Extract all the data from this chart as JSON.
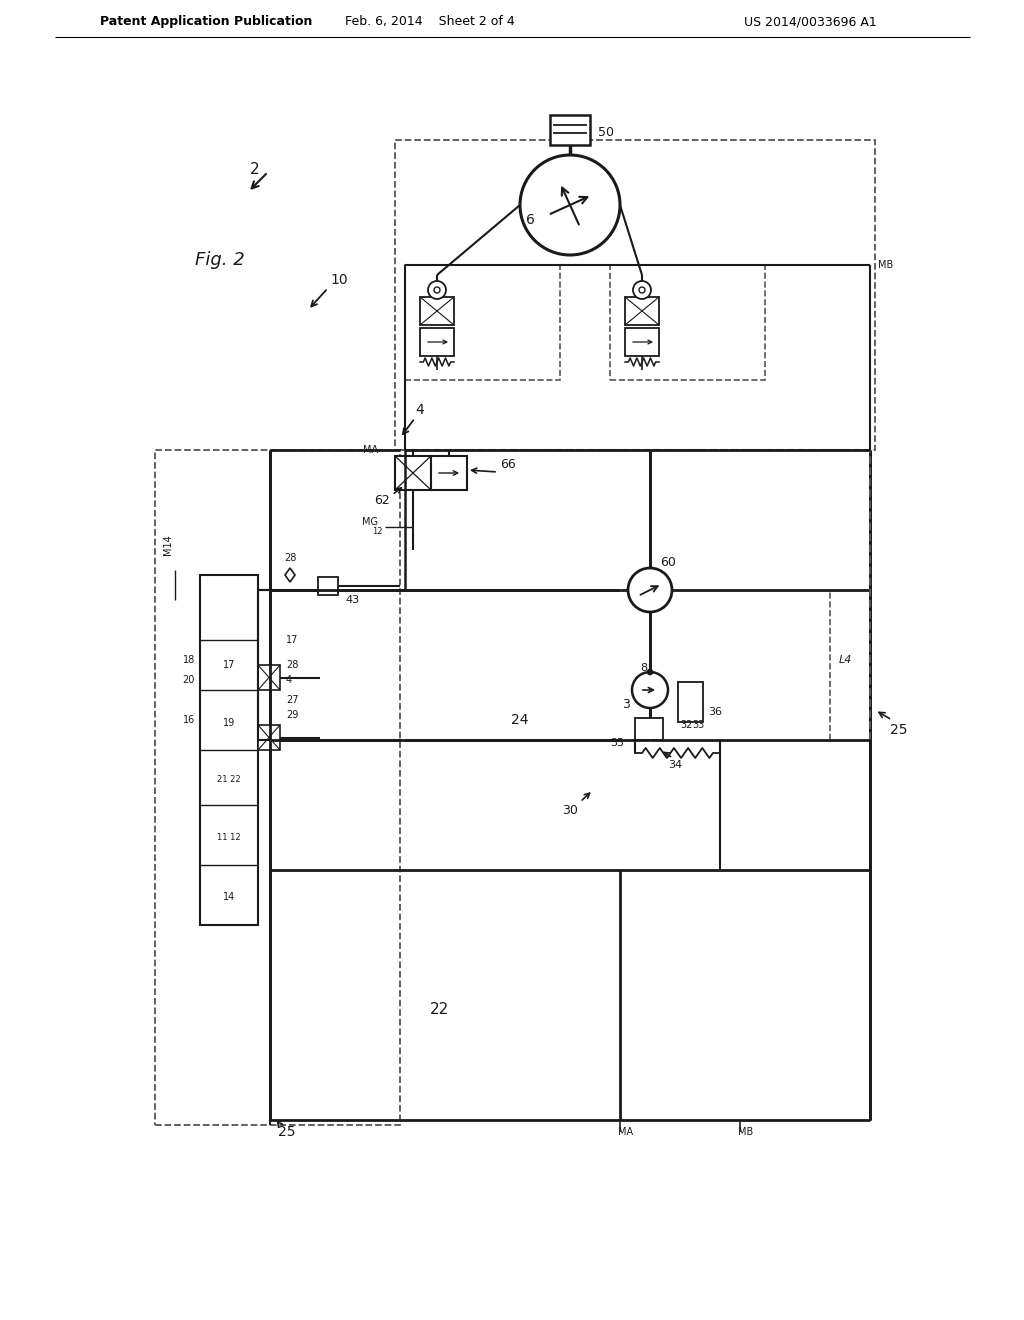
{
  "header_left": "Patent Application Publication",
  "header_mid": "Feb. 6, 2014    Sheet 2 of 4",
  "header_right": "US 2014/0033696 A1",
  "bg": "#ffffff",
  "lc": "#1a1a1a"
}
